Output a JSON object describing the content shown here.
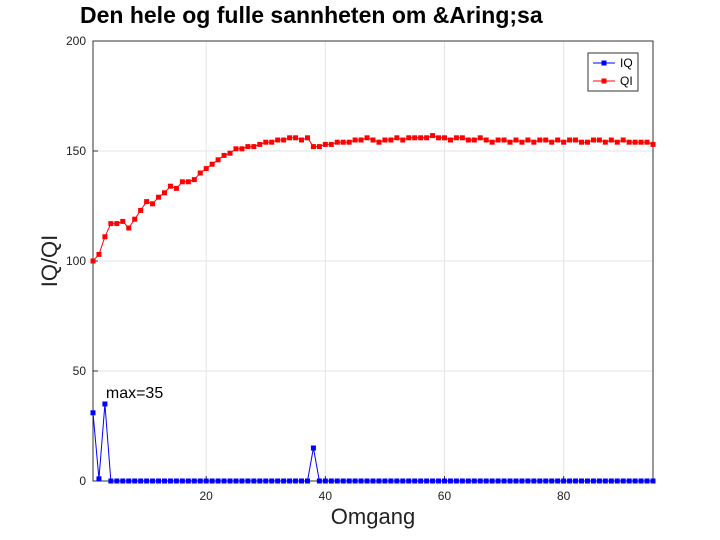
{
  "chart_data": {
    "type": "line",
    "title": "Den hele og fulle sannheten om &Aring;sa",
    "xlabel": "Omgang",
    "ylabel": "IQ/QI",
    "xlim": [
      1,
      95
    ],
    "ylim": [
      0,
      200
    ],
    "xticks": [
      20,
      40,
      60,
      80
    ],
    "yticks": [
      0,
      50,
      100,
      150,
      200
    ],
    "grid": true,
    "legend_position": "top-right",
    "annotation": {
      "text": "max=35",
      "x": 4,
      "y": 40
    },
    "series": [
      {
        "name": "IQ",
        "color": "#0000ff",
        "marker": "square",
        "x": [
          1,
          2,
          3,
          4,
          5,
          6,
          7,
          8,
          9,
          10,
          11,
          12,
          13,
          14,
          15,
          16,
          17,
          18,
          19,
          20,
          21,
          22,
          23,
          24,
          25,
          26,
          27,
          28,
          29,
          30,
          31,
          32,
          33,
          34,
          35,
          36,
          37,
          38,
          39,
          40,
          41,
          42,
          43,
          44,
          45,
          46,
          47,
          48,
          49,
          50,
          51,
          52,
          53,
          54,
          55,
          56,
          57,
          58,
          59,
          60,
          61,
          62,
          63,
          64,
          65,
          66,
          67,
          68,
          69,
          70,
          71,
          72,
          73,
          74,
          75,
          76,
          77,
          78,
          79,
          80,
          81,
          82,
          83,
          84,
          85,
          86,
          87,
          88,
          89,
          90,
          91,
          92,
          93,
          94,
          95
        ],
        "values": [
          31,
          1,
          35,
          0,
          0,
          0,
          0,
          0,
          0,
          0,
          0,
          0,
          0,
          0,
          0,
          0,
          0,
          0,
          0,
          0,
          0,
          0,
          0,
          0,
          0,
          0,
          0,
          0,
          0,
          0,
          0,
          0,
          0,
          0,
          0,
          0,
          0,
          15,
          0,
          0,
          0,
          0,
          0,
          0,
          0,
          0,
          0,
          0,
          0,
          0,
          0,
          0,
          0,
          0,
          0,
          0,
          0,
          0,
          0,
          0,
          0,
          0,
          0,
          0,
          0,
          0,
          0,
          0,
          0,
          0,
          0,
          0,
          0,
          0,
          0,
          0,
          0,
          0,
          0,
          0,
          0,
          0,
          0,
          0,
          0,
          0,
          0,
          0,
          0,
          0,
          0,
          0,
          0,
          0,
          0
        ]
      },
      {
        "name": "QI",
        "color": "#ff0000",
        "marker": "square",
        "x": [
          1,
          2,
          3,
          4,
          5,
          6,
          7,
          8,
          9,
          10,
          11,
          12,
          13,
          14,
          15,
          16,
          17,
          18,
          19,
          20,
          21,
          22,
          23,
          24,
          25,
          26,
          27,
          28,
          29,
          30,
          31,
          32,
          33,
          34,
          35,
          36,
          37,
          38,
          39,
          40,
          41,
          42,
          43,
          44,
          45,
          46,
          47,
          48,
          49,
          50,
          51,
          52,
          53,
          54,
          55,
          56,
          57,
          58,
          59,
          60,
          61,
          62,
          63,
          64,
          65,
          66,
          67,
          68,
          69,
          70,
          71,
          72,
          73,
          74,
          75,
          76,
          77,
          78,
          79,
          80,
          81,
          82,
          83,
          84,
          85,
          86,
          87,
          88,
          89,
          90,
          91,
          92,
          93,
          94,
          95
        ],
        "values": [
          100,
          103,
          111,
          117,
          117,
          118,
          115,
          119,
          123,
          127,
          126,
          129,
          131,
          134,
          133,
          136,
          136,
          137,
          140,
          142,
          144,
          146,
          148,
          149,
          151,
          151,
          152,
          152,
          153,
          154,
          154,
          155,
          155,
          156,
          156,
          155,
          156,
          152,
          152,
          153,
          153,
          154,
          154,
          154,
          155,
          155,
          156,
          155,
          154,
          155,
          155,
          156,
          155,
          156,
          156,
          156,
          156,
          157,
          156,
          156,
          155,
          156,
          156,
          155,
          155,
          156,
          155,
          154,
          155,
          155,
          154,
          155,
          154,
          155,
          154,
          155,
          155,
          154,
          155,
          154,
          155,
          155,
          154,
          154,
          155,
          155,
          154,
          155,
          154,
          155,
          154,
          154,
          154,
          154,
          153
        ]
      }
    ]
  }
}
